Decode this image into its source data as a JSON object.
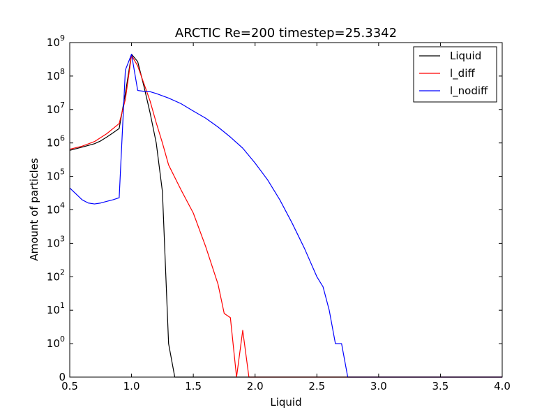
{
  "chart_data": {
    "type": "line",
    "title": "ARCTIC Re=200 timestep=25.3342",
    "xlabel": "Liquid",
    "ylabel": "Amount of particles",
    "xlim": [
      0.5,
      4.0
    ],
    "yscale": "symlog",
    "ylim": [
      0,
      1000000000
    ],
    "xticks": [
      0.5,
      1.0,
      1.5,
      2.0,
      2.5,
      3.0,
      3.5,
      4.0
    ],
    "xtick_labels": [
      "0.5",
      "1.0",
      "1.5",
      "2.0",
      "2.5",
      "3.0",
      "3.5",
      "4.0"
    ],
    "yticks": [
      {
        "value": 0,
        "base": "0",
        "exp": ""
      },
      {
        "value": 1,
        "base": "10",
        "exp": "0"
      },
      {
        "value": 10,
        "base": "10",
        "exp": "1"
      },
      {
        "value": 100,
        "base": "10",
        "exp": "2"
      },
      {
        "value": 1000,
        "base": "10",
        "exp": "3"
      },
      {
        "value": 10000,
        "base": "10",
        "exp": "4"
      },
      {
        "value": 100000,
        "base": "10",
        "exp": "5"
      },
      {
        "value": 1000000,
        "base": "10",
        "exp": "6"
      },
      {
        "value": 10000000,
        "base": "10",
        "exp": "7"
      },
      {
        "value": 100000000,
        "base": "10",
        "exp": "8"
      },
      {
        "value": 1000000000,
        "base": "10",
        "exp": "9"
      }
    ],
    "grid": false,
    "legend_position": "top-right",
    "series": [
      {
        "name": "Liquid",
        "color": "#000000",
        "x": [
          0.5,
          0.6,
          0.7,
          0.75,
          0.8,
          0.85,
          0.9,
          0.95,
          1.0,
          1.05,
          1.1,
          1.15,
          1.2,
          1.25,
          1.3,
          1.35,
          4.0
        ],
        "y": [
          600000,
          750000,
          950000,
          1150000,
          1500000,
          2000000,
          2700000,
          30000000,
          450000000,
          270000000,
          50000000,
          8000000,
          1000000,
          35000,
          1,
          0,
          0
        ]
      },
      {
        "name": "l_diff",
        "color": "#ff0000",
        "x": [
          0.5,
          0.6,
          0.7,
          0.8,
          0.9,
          0.95,
          1.0,
          1.05,
          1.1,
          1.15,
          1.2,
          1.25,
          1.3,
          1.4,
          1.5,
          1.6,
          1.7,
          1.75,
          1.8,
          1.85,
          1.9,
          1.95,
          4.0
        ],
        "y": [
          650000,
          800000,
          1100000,
          1900000,
          3800000,
          20000000,
          420000000,
          200000000,
          60000000,
          18000000,
          4000000,
          1000000,
          220000,
          40000,
          8000,
          800,
          60,
          8,
          6,
          0,
          2.5,
          0,
          0
        ]
      },
      {
        "name": "l_nodiff",
        "color": "#0000ff",
        "x": [
          0.5,
          0.6,
          0.65,
          0.7,
          0.75,
          0.8,
          0.85,
          0.9,
          0.95,
          1.0,
          1.05,
          1.1,
          1.15,
          1.2,
          1.3,
          1.4,
          1.5,
          1.6,
          1.7,
          1.8,
          1.9,
          2.0,
          2.1,
          2.2,
          2.3,
          2.4,
          2.5,
          2.55,
          2.6,
          2.65,
          2.7,
          2.75,
          4.0
        ],
        "y": [
          45000,
          20000,
          16000,
          15000,
          16000,
          18000,
          20000,
          23000,
          150000000,
          450000000,
          37000000,
          35000000,
          34000000,
          30000000,
          22000000,
          15000000,
          9000000,
          5500000,
          3000000,
          1500000,
          700000,
          250000,
          80000,
          20000,
          4000,
          700,
          100,
          50,
          10,
          1,
          1,
          0,
          0
        ]
      }
    ]
  }
}
